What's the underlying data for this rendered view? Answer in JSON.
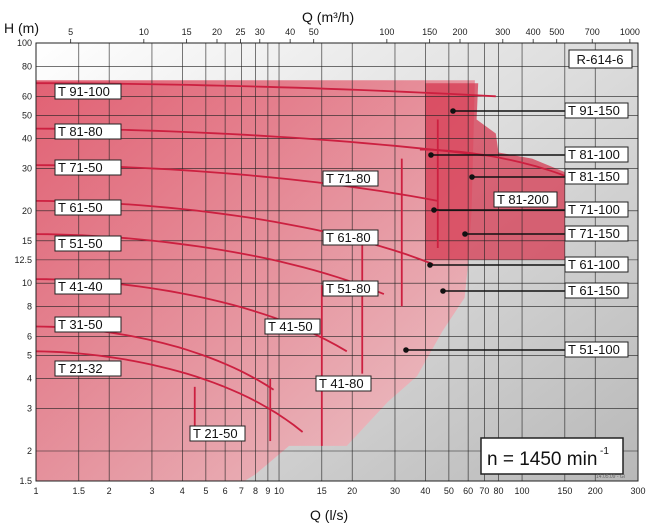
{
  "chart_data": {
    "type": "area",
    "title": "R-614-6",
    "subtitle": "",
    "xlabel_bottom": "Q (l/s)",
    "xlabel_top": "Q (m³/h)",
    "ylabel": "H (m)",
    "x_scale": "log",
    "y_scale": "log",
    "xlim": [
      1,
      300
    ],
    "ylim": [
      1.5,
      100
    ],
    "x_ticks": [
      "1",
      "1.5",
      "2",
      "3",
      "4",
      "5",
      "6",
      "7",
      "8",
      "9",
      "10",
      "15",
      "20",
      "30",
      "40",
      "50",
      "60",
      "70",
      "80",
      "100",
      "150",
      "200",
      "300"
    ],
    "x_ticks_top": [
      "5",
      "10",
      "15",
      "20",
      "25",
      "30",
      "40",
      "50",
      "100",
      "150",
      "200",
      "300",
      "400",
      "500",
      "700",
      "1000"
    ],
    "y_ticks": [
      "1.5",
      "2",
      "3",
      "4",
      "5",
      "6",
      "8",
      "10",
      "12.5",
      "15",
      "20",
      "30",
      "40",
      "50",
      "60",
      "80",
      "100"
    ],
    "grid": true,
    "speed_label": "n = 1450 min",
    "speed_exp": "-1",
    "footnote": "14.05.09 - Gi",
    "series": [
      {
        "name": "T 21-32",
        "color": "#f4b6bc"
      },
      {
        "name": "T 21-50",
        "color": "#f0a8b0"
      },
      {
        "name": "T 31-50",
        "color": "#f4b6bc"
      },
      {
        "name": "T 41-40",
        "color": "#f0a0a8"
      },
      {
        "name": "T 41-50",
        "color": "#ee98a2"
      },
      {
        "name": "T 41-80",
        "color": "#ea8c97"
      },
      {
        "name": "T 51-50",
        "color": "#ec94a0"
      },
      {
        "name": "T 51-80",
        "color": "#e68090"
      },
      {
        "name": "T 51-100",
        "color": "#e07a88"
      },
      {
        "name": "T 61-50",
        "color": "#e88896"
      },
      {
        "name": "T 61-80",
        "color": "#e27a88"
      },
      {
        "name": "T 61-100",
        "color": "#dc6c7c"
      },
      {
        "name": "T 61-150",
        "color": "#d86474"
      },
      {
        "name": "T 71-50",
        "color": "#e27c8c"
      },
      {
        "name": "T 71-80",
        "color": "#dc6e80"
      },
      {
        "name": "T 71-100",
        "color": "#d66070"
      },
      {
        "name": "T 71-150",
        "color": "#d45868"
      },
      {
        "name": "T 81-80",
        "color": "#dc7080"
      },
      {
        "name": "T 81-100",
        "color": "#d46070"
      },
      {
        "name": "T 81-150",
        "color": "#d05464"
      },
      {
        "name": "T 81-200",
        "color": "#cc4c5e"
      },
      {
        "name": "T 91-100",
        "color": "#d86c7c"
      },
      {
        "name": "T 91-150",
        "color": "#d05868"
      }
    ]
  }
}
